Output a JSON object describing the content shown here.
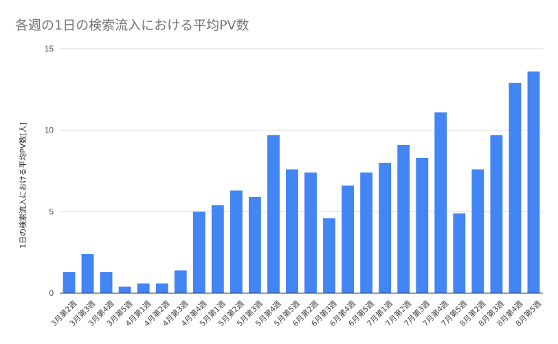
{
  "chart_data": {
    "type": "bar",
    "title": "各週の1日の検索流入における平均PV数",
    "ylabel": "1日の検索流入における平均PV数[人]",
    "xlabel": "",
    "ylim": [
      0,
      15
    ],
    "yticks": [
      0,
      5,
      10,
      15
    ],
    "grid": true,
    "bar_color": "#4285f4",
    "categories": [
      "3月第2週",
      "3月第3週",
      "3月第4週",
      "3月第5週",
      "4月第1週",
      "4月第2週",
      "4月第3週",
      "4月第4週",
      "5月第1週",
      "5月第2週",
      "5月第3週",
      "5月第4週",
      "5月第5週",
      "6月第2週",
      "6月第3週",
      "6月第4週",
      "6月第5週",
      "7月第1週",
      "7月第2週",
      "7月第3週",
      "7月第4週",
      "7月第5週",
      "8月第2週",
      "8月第3週",
      "8月第4週",
      "8月第5週"
    ],
    "values": [
      1.3,
      2.4,
      1.3,
      0.4,
      0.6,
      0.6,
      1.4,
      5.0,
      5.4,
      6.3,
      5.9,
      9.7,
      7.6,
      7.4,
      4.6,
      6.6,
      7.4,
      8.0,
      9.1,
      8.3,
      11.1,
      4.9,
      7.6,
      9.7,
      12.9,
      13.6
    ]
  }
}
